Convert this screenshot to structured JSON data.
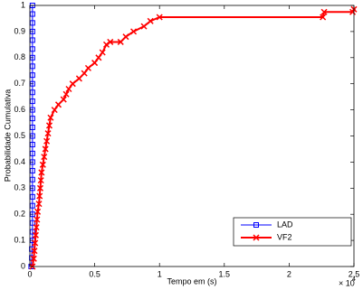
{
  "chart_data": {
    "type": "line",
    "x_label": "Tempo em (s)",
    "y_label": "Probabilidade Cumulativa",
    "x_multiplier": {
      "base": "× 10",
      "exponent": "4"
    },
    "xlim": [
      0,
      2.5
    ],
    "xticks": [
      0,
      0.5,
      1,
      1.5,
      2,
      2.5
    ],
    "ylim": [
      0,
      1
    ],
    "yticks": [
      0,
      0.1,
      0.2,
      0.3,
      0.4,
      0.5,
      0.6,
      0.7,
      0.8,
      0.9,
      1
    ],
    "grid": false,
    "legend_position": "lower-right",
    "series": [
      {
        "name": "LAD",
        "color": "#0000ff",
        "marker": "square",
        "x": [
          0.01,
          0.015,
          0.015,
          0.02,
          0.02,
          0.02,
          0.02,
          0.02,
          0.02,
          0.02,
          0.02,
          0.02,
          0.02,
          0.02,
          0.02,
          0.02,
          0.02,
          0.02,
          0.02,
          0.02,
          0.02,
          0.02,
          0.02,
          0.02,
          0.02,
          0.02,
          0.02,
          0.02,
          0.02,
          0.02,
          0.02
        ],
        "values": [
          0,
          0.033,
          0.067,
          0.1,
          0.133,
          0.167,
          0.2,
          0.233,
          0.267,
          0.3,
          0.333,
          0.367,
          0.4,
          0.433,
          0.467,
          0.5,
          0.533,
          0.567,
          0.6,
          0.633,
          0.667,
          0.7,
          0.733,
          0.767,
          0.8,
          0.833,
          0.867,
          0.9,
          0.933,
          0.967,
          1
        ]
      },
      {
        "name": "VF2",
        "color": "#ff0000",
        "marker": "x",
        "x": [
          0.02,
          0.03,
          0.035,
          0.04,
          0.045,
          0.05,
          0.055,
          0.06,
          0.07,
          0.075,
          0.08,
          0.085,
          0.09,
          0.1,
          0.11,
          0.12,
          0.13,
          0.14,
          0.15,
          0.16,
          0.19,
          0.22,
          0.26,
          0.28,
          0.3,
          0.33,
          0.38,
          0.42,
          0.45,
          0.5,
          0.53,
          0.56,
          0.59,
          0.62,
          0.7,
          0.74,
          0.8,
          0.88,
          0.93,
          1.0,
          2.26,
          2.27,
          2.49,
          2.5
        ],
        "values": [
          0,
          0.03,
          0.06,
          0.09,
          0.12,
          0.15,
          0.18,
          0.21,
          0.24,
          0.27,
          0.3,
          0.33,
          0.36,
          0.39,
          0.42,
          0.45,
          0.48,
          0.51,
          0.54,
          0.57,
          0.6,
          0.62,
          0.64,
          0.66,
          0.68,
          0.7,
          0.72,
          0.74,
          0.76,
          0.78,
          0.8,
          0.82,
          0.85,
          0.86,
          0.86,
          0.88,
          0.9,
          0.92,
          0.94,
          0.955,
          0.955,
          0.975,
          0.975,
          0.985
        ]
      }
    ]
  }
}
